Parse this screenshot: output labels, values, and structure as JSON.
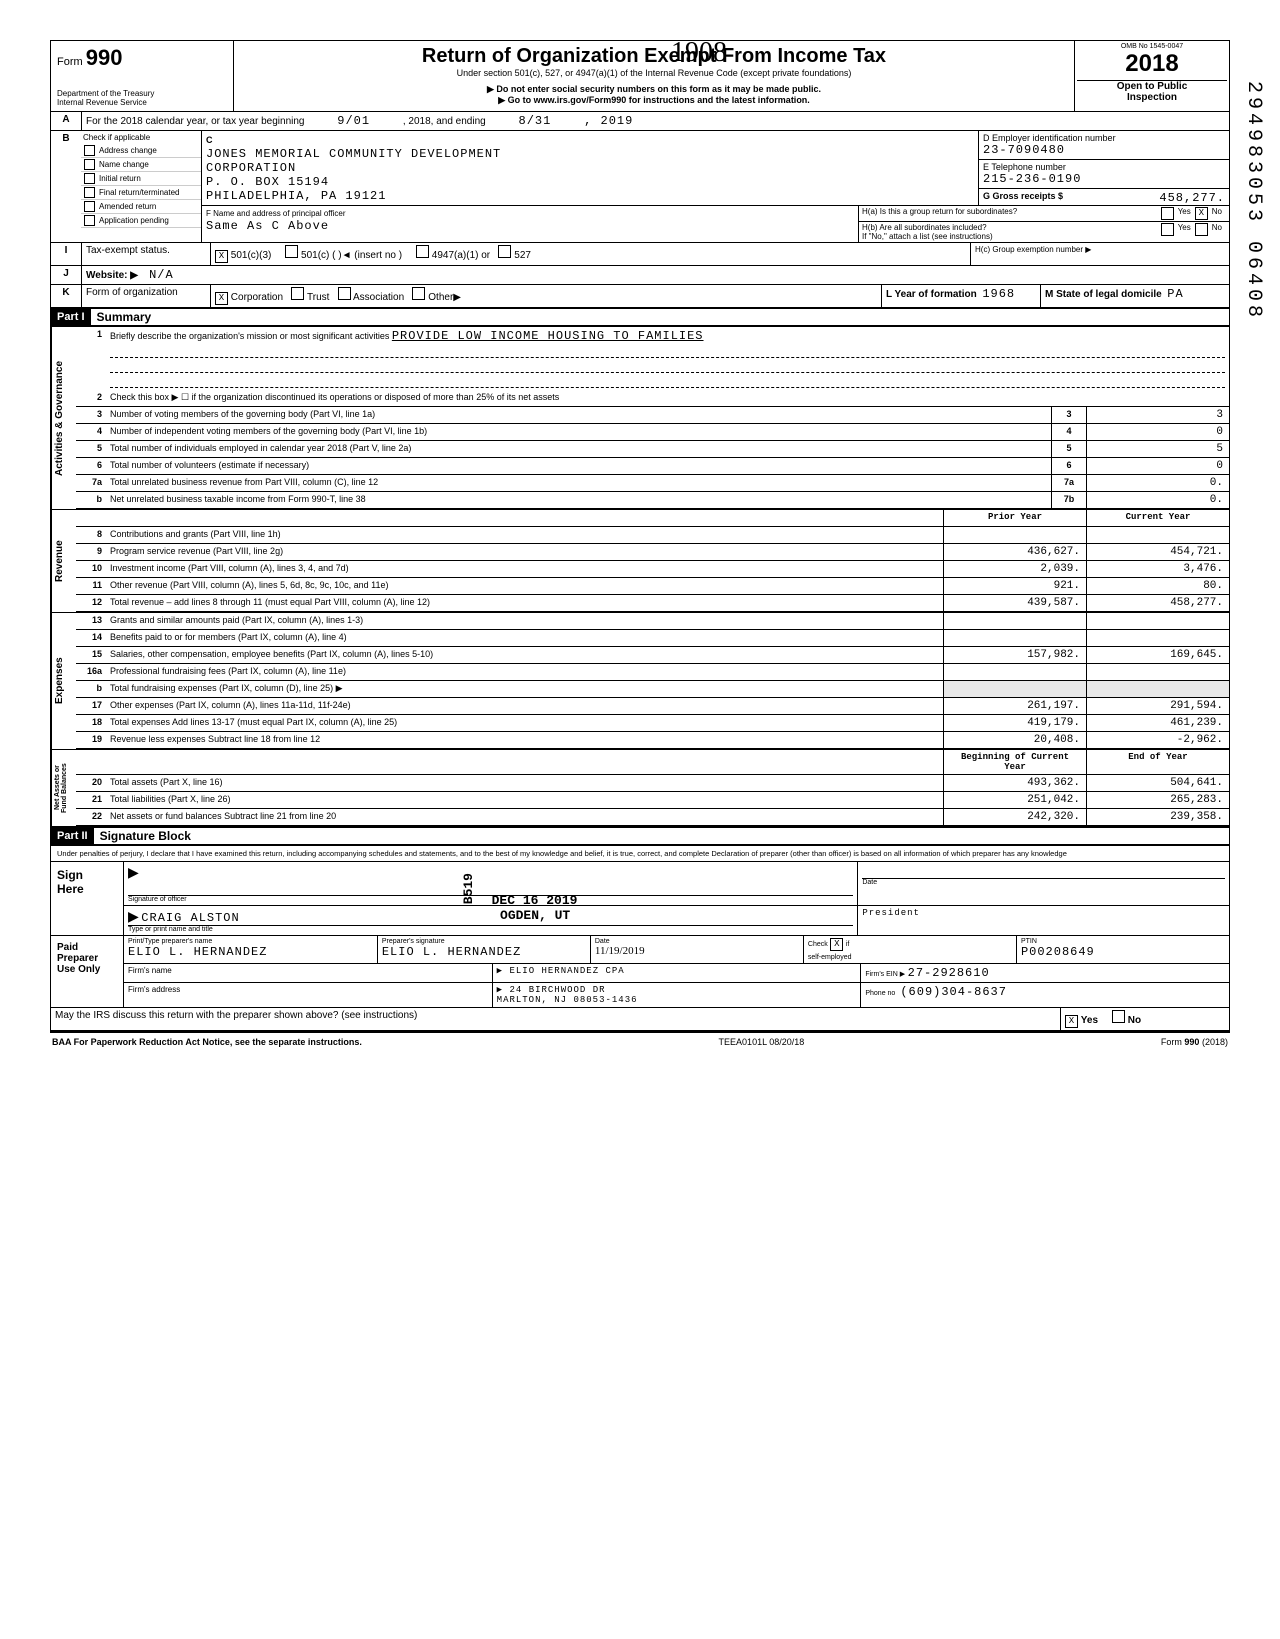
{
  "margin_number": "294983053 06408",
  "handwritten_top": "1908",
  "header": {
    "form_label": "Form",
    "form_number": "990",
    "omb": "OMB No  1545-0047",
    "year": "2018",
    "title": "Return of Organization Exempt From Income Tax",
    "subtitle": "Under section 501(c), 527, or 4947(a)(1) of the Internal Revenue Code (except private foundations)",
    "note1": "▶ Do not enter social security numbers on this form as it may be made public.",
    "note2": "▶ Go to www.irs.gov/Form990 for instructions and the latest information.",
    "dept": "Department of the Treasury\nInternal Revenue Service",
    "open": "Open to Public\nInspection"
  },
  "line_a": {
    "label": "A",
    "text": "For the 2018 calendar year, or tax year beginning",
    "begin": "9/01",
    "mid": ", 2018, and ending",
    "end": "8/31",
    "endyear": ", 2019"
  },
  "section_b": {
    "label": "B",
    "check_label": "Check if applicable",
    "checks": [
      "Address change",
      "Name change",
      "Initial return",
      "Final return/terminated",
      "Amended return",
      "Application pending"
    ],
    "c_label": "C",
    "name1": "JONES MEMORIAL COMMUNITY DEVELOPMENT",
    "name2": "CORPORATION",
    "addr1": "P. O. BOX  15194",
    "addr2": "PHILADELPHIA, PA 19121",
    "d_label": "D Employer identification number",
    "ein": "23-7090480",
    "e_label": "E  Telephone number",
    "phone": "215-236-0190",
    "g_label": "G  Gross receipts $",
    "g_val": "458,277.",
    "f_label": "F Name and address of principal officer",
    "f_val": "Same As C Above",
    "ha": "H(a) Is this a group return for subordinates?",
    "ha_yes": "Yes",
    "ha_no": "No",
    "ha_no_x": "X",
    "hb": "H(b) Are all subordinates included?\nIf \"No,\" attach a list  (see instructions)",
    "hb_yes": "Yes",
    "hb_no": "No",
    "hc": "H(c) Group exemption number ▶"
  },
  "row_i": {
    "label": "I",
    "text": "Tax-exempt status.",
    "x": "X",
    "opt1": "501(c)(3)",
    "opt2": "501(c) (",
    "insert": ")◄  (insert no )",
    "opt3": "4947(a)(1) or",
    "opt4": "527"
  },
  "row_j": {
    "label": "J",
    "text": "Website: ▶",
    "val": "N/A"
  },
  "row_k": {
    "label": "K",
    "text": "Form of organization",
    "corp_x": "X",
    "corp": "Corporation",
    "trust": "Trust",
    "assoc": "Association",
    "other": "Other▶",
    "l_label": "L Year of formation",
    "l_val": "1968",
    "m_label": "M State of legal domicile",
    "m_val": "PA"
  },
  "part1": {
    "hdr": "Part I",
    "title": "Summary"
  },
  "gov": {
    "tab": "Activities & Governance",
    "l1": "Briefly describe the organization's mission or most significant activities",
    "l1val": "PROVIDE LOW INCOME HOUSING TO FAMILIES",
    "l2": "Check this box ▶ ☐ if the organization discontinued its operations or disposed of more than 25% of its net assets",
    "rows": [
      {
        "n": "3",
        "t": "Number of voting members of the governing body (Part VI, line 1a)",
        "b": "3",
        "v": "3"
      },
      {
        "n": "4",
        "t": "Number of independent voting members of the governing body (Part VI, line 1b)",
        "b": "4",
        "v": "0"
      },
      {
        "n": "5",
        "t": "Total number of individuals employed in calendar year 2018 (Part V, line 2a)",
        "b": "5",
        "v": "5"
      },
      {
        "n": "6",
        "t": "Total number of volunteers (estimate if necessary)",
        "b": "6",
        "v": "0"
      },
      {
        "n": "7a",
        "t": "Total unrelated business revenue from Part VIII, column (C), line 12",
        "b": "7a",
        "v": "0."
      },
      {
        "n": "b",
        "t": "Net unrelated business taxable income from Form 990-T, line 38",
        "b": "7b",
        "v": "0."
      }
    ]
  },
  "cols": {
    "prior": "Prior Year",
    "current": "Current Year",
    "begin": "Beginning of Current Year",
    "end": "End of Year"
  },
  "revenue": {
    "tab": "Revenue",
    "rows": [
      {
        "n": "8",
        "t": "Contributions and grants (Part VIII, line 1h)",
        "p": "",
        "c": ""
      },
      {
        "n": "9",
        "t": "Program service revenue (Part VIII, line 2g)",
        "p": "436,627.",
        "c": "454,721."
      },
      {
        "n": "10",
        "t": "Investment income (Part VIII, column (A), lines 3, 4, and 7d)",
        "p": "2,039.",
        "c": "3,476."
      },
      {
        "n": "11",
        "t": "Other revenue (Part VIII, column (A), lines 5, 6d, 8c, 9c, 10c, and 11e)",
        "p": "921.",
        "c": "80."
      },
      {
        "n": "12",
        "t": "Total revenue – add lines 8 through 11 (must equal Part VIII, column (A), line 12)",
        "p": "439,587.",
        "c": "458,277."
      }
    ]
  },
  "expenses": {
    "tab": "Expenses",
    "rows": [
      {
        "n": "13",
        "t": "Grants and similar amounts paid (Part IX, column (A), lines 1-3)",
        "p": "",
        "c": ""
      },
      {
        "n": "14",
        "t": "Benefits paid to or for members (Part IX, column (A), line 4)",
        "p": "",
        "c": ""
      },
      {
        "n": "15",
        "t": "Salaries, other compensation, employee benefits (Part IX, column (A), lines 5-10)",
        "p": "157,982.",
        "c": "169,645."
      },
      {
        "n": "16a",
        "t": "Professional fundraising fees (Part IX, column (A), line 11e)",
        "p": "",
        "c": ""
      },
      {
        "n": "b",
        "t": "Total fundraising expenses (Part IX, column (D), line 25) ▶",
        "p": "shaded",
        "c": "shaded"
      },
      {
        "n": "17",
        "t": "Other expenses (Part IX, column (A), lines 11a-11d, 11f-24e)",
        "p": "261,197.",
        "c": "291,594."
      },
      {
        "n": "18",
        "t": "Total expenses  Add lines 13-17 (must equal Part IX, column (A), line 25)",
        "p": "419,179.",
        "c": "461,239."
      },
      {
        "n": "19",
        "t": "Revenue less expenses  Subtract line 18 from line 12",
        "p": "20,408.",
        "c": "-2,962."
      }
    ]
  },
  "netassets": {
    "tab": "Net Assets or\nFund Balances",
    "rows": [
      {
        "n": "20",
        "t": "Total assets (Part X, line 16)",
        "p": "493,362.",
        "c": "504,641."
      },
      {
        "n": "21",
        "t": "Total liabilities (Part X, line 26)",
        "p": "251,042.",
        "c": "265,283."
      },
      {
        "n": "22",
        "t": "Net assets or fund balances  Subtract line 21 from line 20",
        "p": "242,320.",
        "c": "239,358."
      }
    ]
  },
  "stamps": {
    "b519": "B519",
    "date": "DEC 16 2019",
    "ogden": "OGDEN, UT"
  },
  "part2": {
    "hdr": "Part II",
    "title": "Signature Block"
  },
  "perjury": "Under penalties of perjury, I declare that I have examined this return, including accompanying schedules and statements, and to the best of my knowledge and belief, it is true, correct, and complete  Declaration of preparer (other than officer) is based on all information of which preparer has any knowledge",
  "sign": {
    "label": "Sign\nHere",
    "sig_officer": "Signature of officer",
    "date_lbl": "Date",
    "name": "CRAIG ALSTON",
    "title_lbl": "Type or print name and title",
    "title_val": "President"
  },
  "preparer": {
    "label": "Paid\nPreparer\nUse Only",
    "print_lbl": "Print/Type preparer's name",
    "print_val": "ELIO L. HERNANDEZ",
    "sig_lbl": "Preparer's signature",
    "sig_val": "ELIO L. HERNANDEZ",
    "date_lbl": "Date",
    "date_val": "11/19/2019",
    "check_lbl": "Check",
    "check_x": "X",
    "check_if": "if\nself-employed",
    "ptin_lbl": "PTIN",
    "ptin_val": "P00208649",
    "firm_name_lbl": "Firm's name",
    "firm_name": "▶ ELIO HERNANDEZ CPA",
    "firm_addr_lbl": "Firm's address",
    "firm_addr1": "▶ 24 BIRCHWOOD DR",
    "firm_addr2": "MARLTON, NJ 08053-1436",
    "firm_ein_lbl": "Firm's EIN ▶",
    "firm_ein": "27-2928610",
    "phone_lbl": "Phone no",
    "phone": "(609)304-8637"
  },
  "discuss": {
    "text": "May the IRS discuss this return with the preparer shown above? (see instructions)",
    "yes_x": "X",
    "yes": "Yes",
    "no": "No"
  },
  "footer": {
    "left": "BAA  For Paperwork Reduction Act Notice, see the separate instructions.",
    "mid": "TEEA0101L 08/20/18",
    "right": "Form 990 (2018)"
  }
}
